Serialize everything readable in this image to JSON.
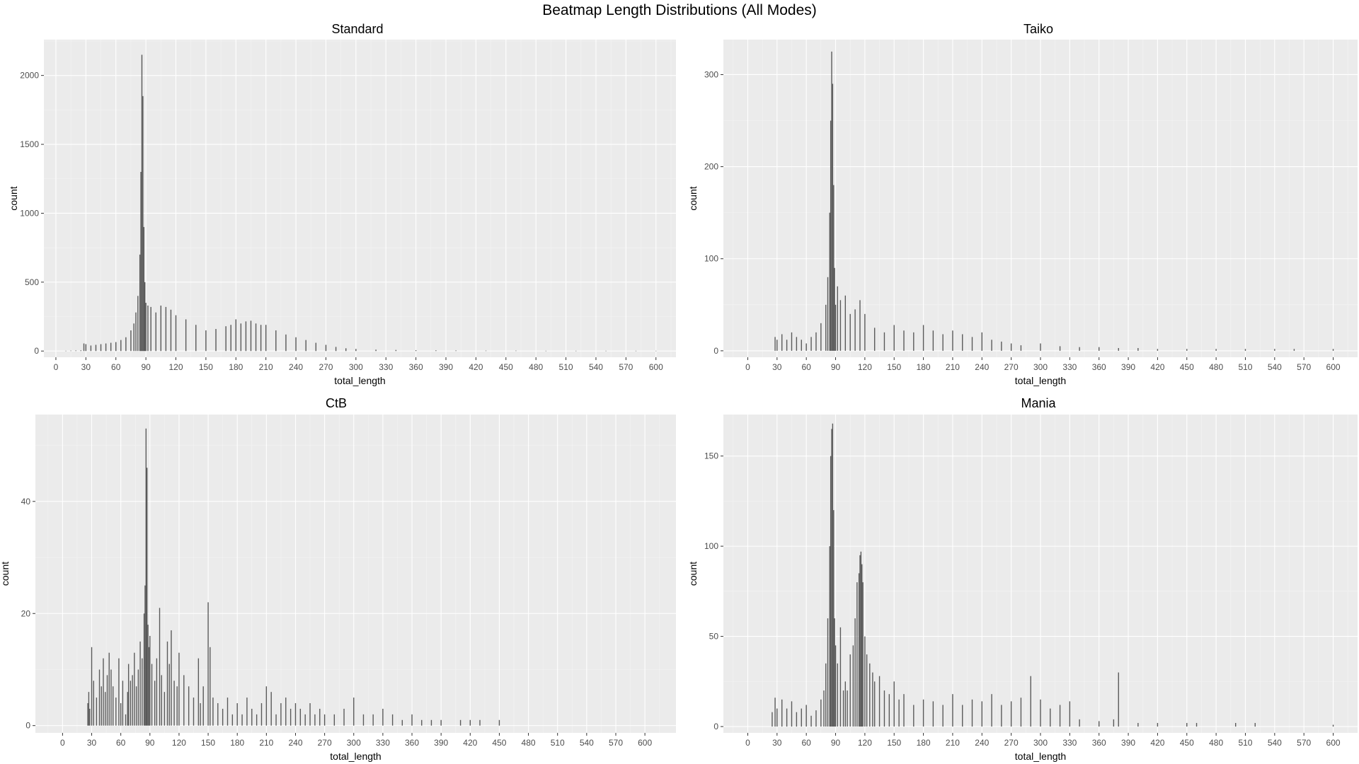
{
  "title": "Beatmap Length Distributions (All Modes)",
  "colors": {
    "panel_bg": "#ebebeb",
    "grid_major": "#ffffff",
    "bar": "#595959",
    "tick_text": "#4d4d4d"
  },
  "chart_data": [
    {
      "type": "bar",
      "title": "Standard",
      "xlabel": "total_length",
      "ylabel": "count",
      "xlim": [
        -12,
        620
      ],
      "ylim": [
        -45,
        2260
      ],
      "x_ticks": [
        0,
        30,
        60,
        90,
        120,
        150,
        180,
        210,
        240,
        270,
        300,
        330,
        360,
        390,
        420,
        450,
        480,
        510,
        540,
        570,
        600
      ],
      "y_ticks": [
        0,
        500,
        1000,
        1500,
        2000
      ],
      "grid": true,
      "x": [
        10,
        15,
        20,
        25,
        28,
        30,
        35,
        40,
        45,
        50,
        55,
        60,
        65,
        70,
        75,
        78,
        80,
        82,
        84,
        85,
        86,
        87,
        88,
        89,
        90,
        92,
        95,
        100,
        105,
        110,
        115,
        120,
        130,
        140,
        150,
        160,
        170,
        175,
        180,
        185,
        190,
        195,
        200,
        205,
        210,
        220,
        230,
        240,
        250,
        260,
        270,
        280,
        290,
        300,
        320,
        340,
        360,
        380,
        400,
        430,
        460,
        490,
        520,
        550,
        580,
        600
      ],
      "values": [
        2,
        3,
        4,
        5,
        55,
        50,
        40,
        45,
        50,
        55,
        60,
        65,
        80,
        100,
        150,
        200,
        280,
        400,
        700,
        1300,
        2150,
        1850,
        900,
        500,
        350,
        330,
        320,
        280,
        330,
        320,
        300,
        260,
        230,
        190,
        150,
        160,
        180,
        190,
        230,
        200,
        215,
        220,
        200,
        190,
        190,
        150,
        120,
        100,
        80,
        60,
        45,
        30,
        20,
        15,
        10,
        8,
        6,
        5,
        4,
        3,
        3,
        2,
        2,
        2,
        2,
        2
      ]
    },
    {
      "type": "bar",
      "title": "Taiko",
      "xlabel": "total_length",
      "ylabel": "count",
      "xlim": [
        -25,
        625
      ],
      "ylim": [
        -7,
        338
      ],
      "x_ticks": [
        0,
        30,
        60,
        90,
        120,
        150,
        180,
        210,
        240,
        270,
        300,
        330,
        360,
        390,
        420,
        450,
        480,
        510,
        540,
        570,
        600
      ],
      "y_ticks": [
        0,
        100,
        200,
        300
      ],
      "grid": true,
      "x": [
        28,
        30,
        35,
        40,
        45,
        50,
        55,
        60,
        65,
        70,
        75,
        80,
        82,
        84,
        85,
        86,
        87,
        88,
        89,
        90,
        92,
        95,
        100,
        105,
        110,
        115,
        120,
        130,
        140,
        150,
        160,
        170,
        180,
        190,
        200,
        210,
        220,
        230,
        240,
        250,
        260,
        270,
        280,
        300,
        320,
        340,
        360,
        380,
        400,
        420,
        450,
        480,
        510,
        540,
        560,
        600
      ],
      "values": [
        15,
        12,
        18,
        12,
        20,
        15,
        12,
        8,
        15,
        20,
        30,
        50,
        80,
        150,
        250,
        325,
        290,
        180,
        90,
        50,
        70,
        55,
        60,
        40,
        45,
        55,
        40,
        25,
        20,
        28,
        22,
        20,
        28,
        22,
        18,
        22,
        18,
        15,
        20,
        12,
        10,
        8,
        6,
        8,
        5,
        4,
        4,
        3,
        3,
        2,
        2,
        2,
        2,
        2,
        2,
        2
      ]
    },
    {
      "type": "bar",
      "title": "CtB",
      "xlabel": "total_length",
      "ylabel": "count",
      "xlim": [
        -28,
        632
      ],
      "ylim": [
        -1.3,
        55.5
      ],
      "x_ticks": [
        0,
        30,
        60,
        90,
        120,
        150,
        180,
        210,
        240,
        270,
        300,
        330,
        360,
        390,
        420,
        450,
        480,
        510,
        540,
        570,
        600
      ],
      "y_ticks": [
        0,
        20,
        40
      ],
      "grid": true,
      "x": [
        26,
        27,
        28,
        30,
        32,
        35,
        38,
        40,
        42,
        44,
        46,
        48,
        50,
        52,
        55,
        58,
        60,
        62,
        65,
        67,
        68,
        70,
        72,
        74,
        76,
        78,
        80,
        82,
        84,
        85,
        86,
        87,
        88,
        89,
        90,
        92,
        95,
        97,
        100,
        102,
        105,
        108,
        110,
        112,
        115,
        118,
        120,
        125,
        130,
        135,
        140,
        142,
        145,
        150,
        152,
        155,
        160,
        165,
        170,
        175,
        180,
        185,
        190,
        195,
        200,
        205,
        210,
        215,
        220,
        225,
        230,
        235,
        240,
        245,
        250,
        255,
        260,
        265,
        270,
        280,
        290,
        300,
        310,
        320,
        330,
        340,
        350,
        360,
        370,
        380,
        390,
        410,
        420,
        430,
        450
      ],
      "values": [
        4,
        6,
        3,
        14,
        8,
        5,
        10,
        7,
        12,
        6,
        9,
        13,
        10,
        7,
        5,
        12,
        4,
        8,
        2,
        6,
        11,
        8,
        9,
        13,
        7,
        10,
        15,
        12,
        20,
        25,
        53,
        46,
        18,
        14,
        16,
        11,
        8,
        12,
        21,
        9,
        6,
        15,
        11,
        17,
        8,
        7,
        13,
        9,
        7,
        5,
        12,
        4,
        7,
        22,
        14,
        5,
        4,
        3,
        5,
        2,
        4,
        2,
        5,
        3,
        2,
        4,
        7,
        6,
        2,
        4,
        5,
        3,
        4,
        3,
        2,
        4,
        2,
        3,
        2,
        2,
        3,
        5,
        2,
        2,
        3,
        2,
        1,
        2,
        1,
        1,
        1,
        1,
        1,
        1,
        1
      ]
    },
    {
      "type": "bar",
      "title": "Mania",
      "xlabel": "total_length",
      "ylabel": "count",
      "xlim": [
        -25,
        625
      ],
      "ylim": [
        -3.5,
        173
      ],
      "x_ticks": [
        0,
        30,
        60,
        90,
        120,
        150,
        180,
        210,
        240,
        270,
        300,
        330,
        360,
        390,
        420,
        450,
        480,
        510,
        540,
        570,
        600
      ],
      "y_ticks": [
        0,
        50,
        100,
        150
      ],
      "grid": true,
      "x": [
        25,
        28,
        30,
        35,
        40,
        45,
        50,
        55,
        60,
        65,
        70,
        75,
        78,
        80,
        82,
        84,
        85,
        86,
        87,
        88,
        89,
        90,
        92,
        95,
        98,
        100,
        102,
        105,
        108,
        110,
        112,
        114,
        115,
        116,
        117,
        118,
        120,
        122,
        125,
        128,
        130,
        135,
        140,
        145,
        150,
        155,
        160,
        170,
        180,
        190,
        200,
        210,
        220,
        230,
        240,
        250,
        260,
        270,
        280,
        290,
        300,
        310,
        320,
        330,
        340,
        360,
        375,
        380,
        400,
        420,
        450,
        460,
        500,
        520,
        600
      ],
      "values": [
        8,
        16,
        10,
        15,
        10,
        14,
        8,
        10,
        12,
        6,
        9,
        15,
        20,
        35,
        60,
        100,
        150,
        165,
        168,
        120,
        60,
        45,
        35,
        55,
        20,
        25,
        20,
        40,
        45,
        60,
        80,
        85,
        95,
        97,
        90,
        80,
        50,
        40,
        35,
        30,
        25,
        28,
        20,
        18,
        25,
        15,
        18,
        12,
        15,
        14,
        12,
        18,
        12,
        15,
        14,
        18,
        12,
        14,
        16,
        28,
        15,
        10,
        12,
        14,
        4,
        3,
        4,
        30,
        2,
        2,
        2,
        2,
        2,
        2,
        1
      ]
    }
  ]
}
